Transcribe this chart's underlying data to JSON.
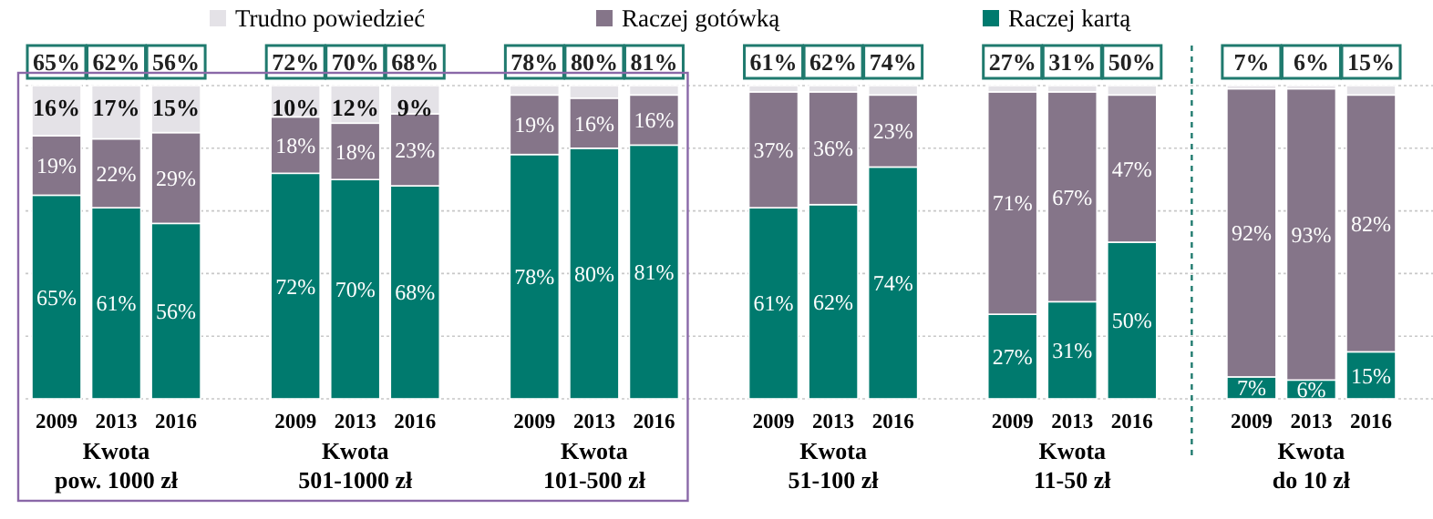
{
  "chart_data": {
    "type": "bar",
    "stacked": true,
    "categories": [
      "2009",
      "2013",
      "2016",
      "2009",
      "2013",
      "2016",
      "2009",
      "2013",
      "2016",
      "2009",
      "2013",
      "2016",
      "2009",
      "2013",
      "2016",
      "2009",
      "2013",
      "2016"
    ],
    "series": [
      {
        "name": "Raczej kartą",
        "color": "#007a6e",
        "values": [
          65,
          61,
          56,
          72,
          70,
          68,
          78,
          80,
          81,
          61,
          62,
          74,
          27,
          31,
          50,
          7,
          6,
          15
        ],
        "value_labels": [
          "65%",
          "61%",
          "56%",
          "72%",
          "70%",
          "68%",
          "78%",
          "80%",
          "81%",
          "61%",
          "62%",
          "74%",
          "27%",
          "31%",
          "50%",
          "7%",
          "6%",
          "15%"
        ]
      },
      {
        "name": "Raczej gotówką",
        "color": "#857589",
        "values": [
          19,
          22,
          29,
          18,
          18,
          23,
          19,
          16,
          16,
          37,
          36,
          23,
          71,
          67,
          47,
          92,
          93,
          82
        ],
        "value_labels": [
          "19%",
          "22%",
          "29%",
          "18%",
          "18%",
          "23%",
          "19%",
          "16%",
          "16%",
          "37%",
          "36%",
          "23%",
          "71%",
          "67%",
          "47%",
          "92%",
          "93%",
          "82%"
        ]
      },
      {
        "name": "Trudno powiedzieć",
        "color": "#e4e2e7",
        "values": [
          16,
          17,
          15,
          10,
          12,
          9,
          3,
          4,
          3,
          2,
          2,
          3,
          2,
          2,
          3,
          1,
          1,
          3
        ],
        "value_labels": [
          "16%",
          "17%",
          "15%",
          "10%",
          "12%",
          "9%",
          null,
          null,
          null,
          null,
          null,
          null,
          null,
          null,
          null,
          null,
          null,
          null
        ]
      }
    ],
    "annotations": [
      "Kwota\npow. 1000 zł",
      "Kwota\n501-1000 zł",
      "Kwota\n101-500 zł",
      "Kwota\n51-100 zł",
      "Kwota\n11-50 zł",
      "Kwota\ndo 10 zł",
      "65%",
      "62%",
      "56%",
      "72%",
      "70%",
      "68%",
      "78%",
      "80%",
      "81%",
      "61%",
      "62%",
      "74%",
      "27%",
      "31%",
      "50%",
      "7%",
      "6%",
      "15%"
    ],
    "ylim": [
      0,
      100
    ],
    "yticks": [
      {
        "value": 0,
        "label": null
      },
      {
        "value": 20,
        "label": null
      },
      {
        "value": 40,
        "label": null
      },
      {
        "value": 60,
        "label": null
      },
      {
        "value": 80,
        "label": null
      },
      {
        "value": 100,
        "label": null
      }
    ],
    "tick_labels": "x",
    "grid": "y",
    "legend": "top"
  }
}
